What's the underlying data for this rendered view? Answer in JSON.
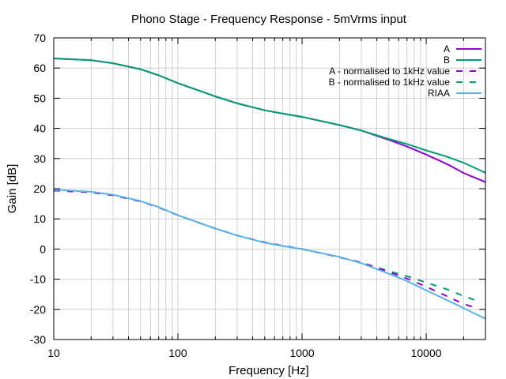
{
  "chart_data": {
    "type": "line",
    "title": "Phono Stage - Frequency Response - 5mVrms input",
    "xlabel": "Frequency [Hz]",
    "ylabel": "Gain [dB]",
    "xscale": "log",
    "xlim": [
      10,
      30000
    ],
    "ylim": [
      -30,
      70
    ],
    "x_tick_labels": [
      "10",
      "100",
      "1000",
      "10000"
    ],
    "y_tick_labels": [
      "70",
      "60",
      "50",
      "40",
      "30",
      "20",
      "10",
      "0",
      "-10",
      "-20",
      "-30"
    ],
    "grid": true,
    "legend_position": "top-right",
    "series": [
      {
        "name": "A",
        "color": "#9400d3",
        "dash": "solid",
        "points": [
          [
            10,
            63.2
          ],
          [
            20,
            62.6
          ],
          [
            30,
            61.6
          ],
          [
            50,
            59.6
          ],
          [
            70,
            57.6
          ],
          [
            100,
            55.0
          ],
          [
            200,
            50.6
          ],
          [
            300,
            48.3
          ],
          [
            500,
            46.0
          ],
          [
            700,
            44.9
          ],
          [
            1000,
            43.8
          ],
          [
            2000,
            41.1
          ],
          [
            3000,
            39.3
          ],
          [
            5000,
            36.2
          ],
          [
            7000,
            34.0
          ],
          [
            10000,
            31.3
          ],
          [
            15000,
            28.0
          ],
          [
            20000,
            25.2
          ],
          [
            30000,
            22.2
          ]
        ]
      },
      {
        "name": "B",
        "color": "#009e73",
        "dash": "solid",
        "points": [
          [
            10,
            63.2
          ],
          [
            20,
            62.6
          ],
          [
            30,
            61.6
          ],
          [
            50,
            59.6
          ],
          [
            70,
            57.6
          ],
          [
            100,
            55.0
          ],
          [
            200,
            50.6
          ],
          [
            300,
            48.3
          ],
          [
            500,
            46.0
          ],
          [
            700,
            44.9
          ],
          [
            1000,
            43.8
          ],
          [
            2000,
            41.1
          ],
          [
            3000,
            39.3
          ],
          [
            5000,
            36.5
          ],
          [
            7000,
            34.8
          ],
          [
            10000,
            32.7
          ],
          [
            15000,
            30.5
          ],
          [
            20000,
            28.6
          ],
          [
            30000,
            25.3
          ]
        ]
      },
      {
        "name": "A - normalised to 1kHz value",
        "color": "#9400d3",
        "dash": "dashed",
        "points": [
          [
            10,
            19.4
          ],
          [
            20,
            18.8
          ],
          [
            30,
            17.8
          ],
          [
            50,
            15.8
          ],
          [
            70,
            13.8
          ],
          [
            100,
            11.2
          ],
          [
            200,
            6.8
          ],
          [
            300,
            4.5
          ],
          [
            500,
            2.2
          ],
          [
            700,
            1.1
          ],
          [
            1000,
            0.0
          ],
          [
            2000,
            -2.7
          ],
          [
            3000,
            -4.5
          ],
          [
            5000,
            -7.6
          ],
          [
            7000,
            -9.8
          ],
          [
            10000,
            -12.5
          ],
          [
            15000,
            -15.8
          ],
          [
            20000,
            -18.2
          ],
          [
            25000,
            -19.5
          ]
        ]
      },
      {
        "name": "B - normalised to 1kHz value",
        "color": "#009e73",
        "dash": "dashed",
        "points": [
          [
            10,
            19.4
          ],
          [
            20,
            18.8
          ],
          [
            30,
            17.8
          ],
          [
            50,
            15.8
          ],
          [
            70,
            13.8
          ],
          [
            100,
            11.2
          ],
          [
            200,
            6.8
          ],
          [
            300,
            4.5
          ],
          [
            500,
            2.2
          ],
          [
            700,
            1.1
          ],
          [
            1000,
            0.0
          ],
          [
            2000,
            -2.7
          ],
          [
            3000,
            -4.5
          ],
          [
            5000,
            -7.3
          ],
          [
            7000,
            -9.0
          ],
          [
            10000,
            -11.1
          ],
          [
            15000,
            -13.5
          ],
          [
            20000,
            -15.6
          ],
          [
            25000,
            -17.0
          ]
        ]
      },
      {
        "name": "RIAA",
        "color": "#56b4e9",
        "dash": "solid",
        "points": [
          [
            10,
            19.7
          ],
          [
            20,
            19.0
          ],
          [
            30,
            18.0
          ],
          [
            50,
            15.9
          ],
          [
            70,
            13.9
          ],
          [
            100,
            11.2
          ],
          [
            200,
            6.8
          ],
          [
            300,
            4.5
          ],
          [
            500,
            2.1
          ],
          [
            700,
            1.0
          ],
          [
            1000,
            0.0
          ],
          [
            2000,
            -2.6
          ],
          [
            3000,
            -4.7
          ],
          [
            5000,
            -8.2
          ],
          [
            7000,
            -10.6
          ],
          [
            10000,
            -13.7
          ],
          [
            15000,
            -17.1
          ],
          [
            20000,
            -19.6
          ],
          [
            30000,
            -23.1
          ]
        ]
      }
    ]
  }
}
